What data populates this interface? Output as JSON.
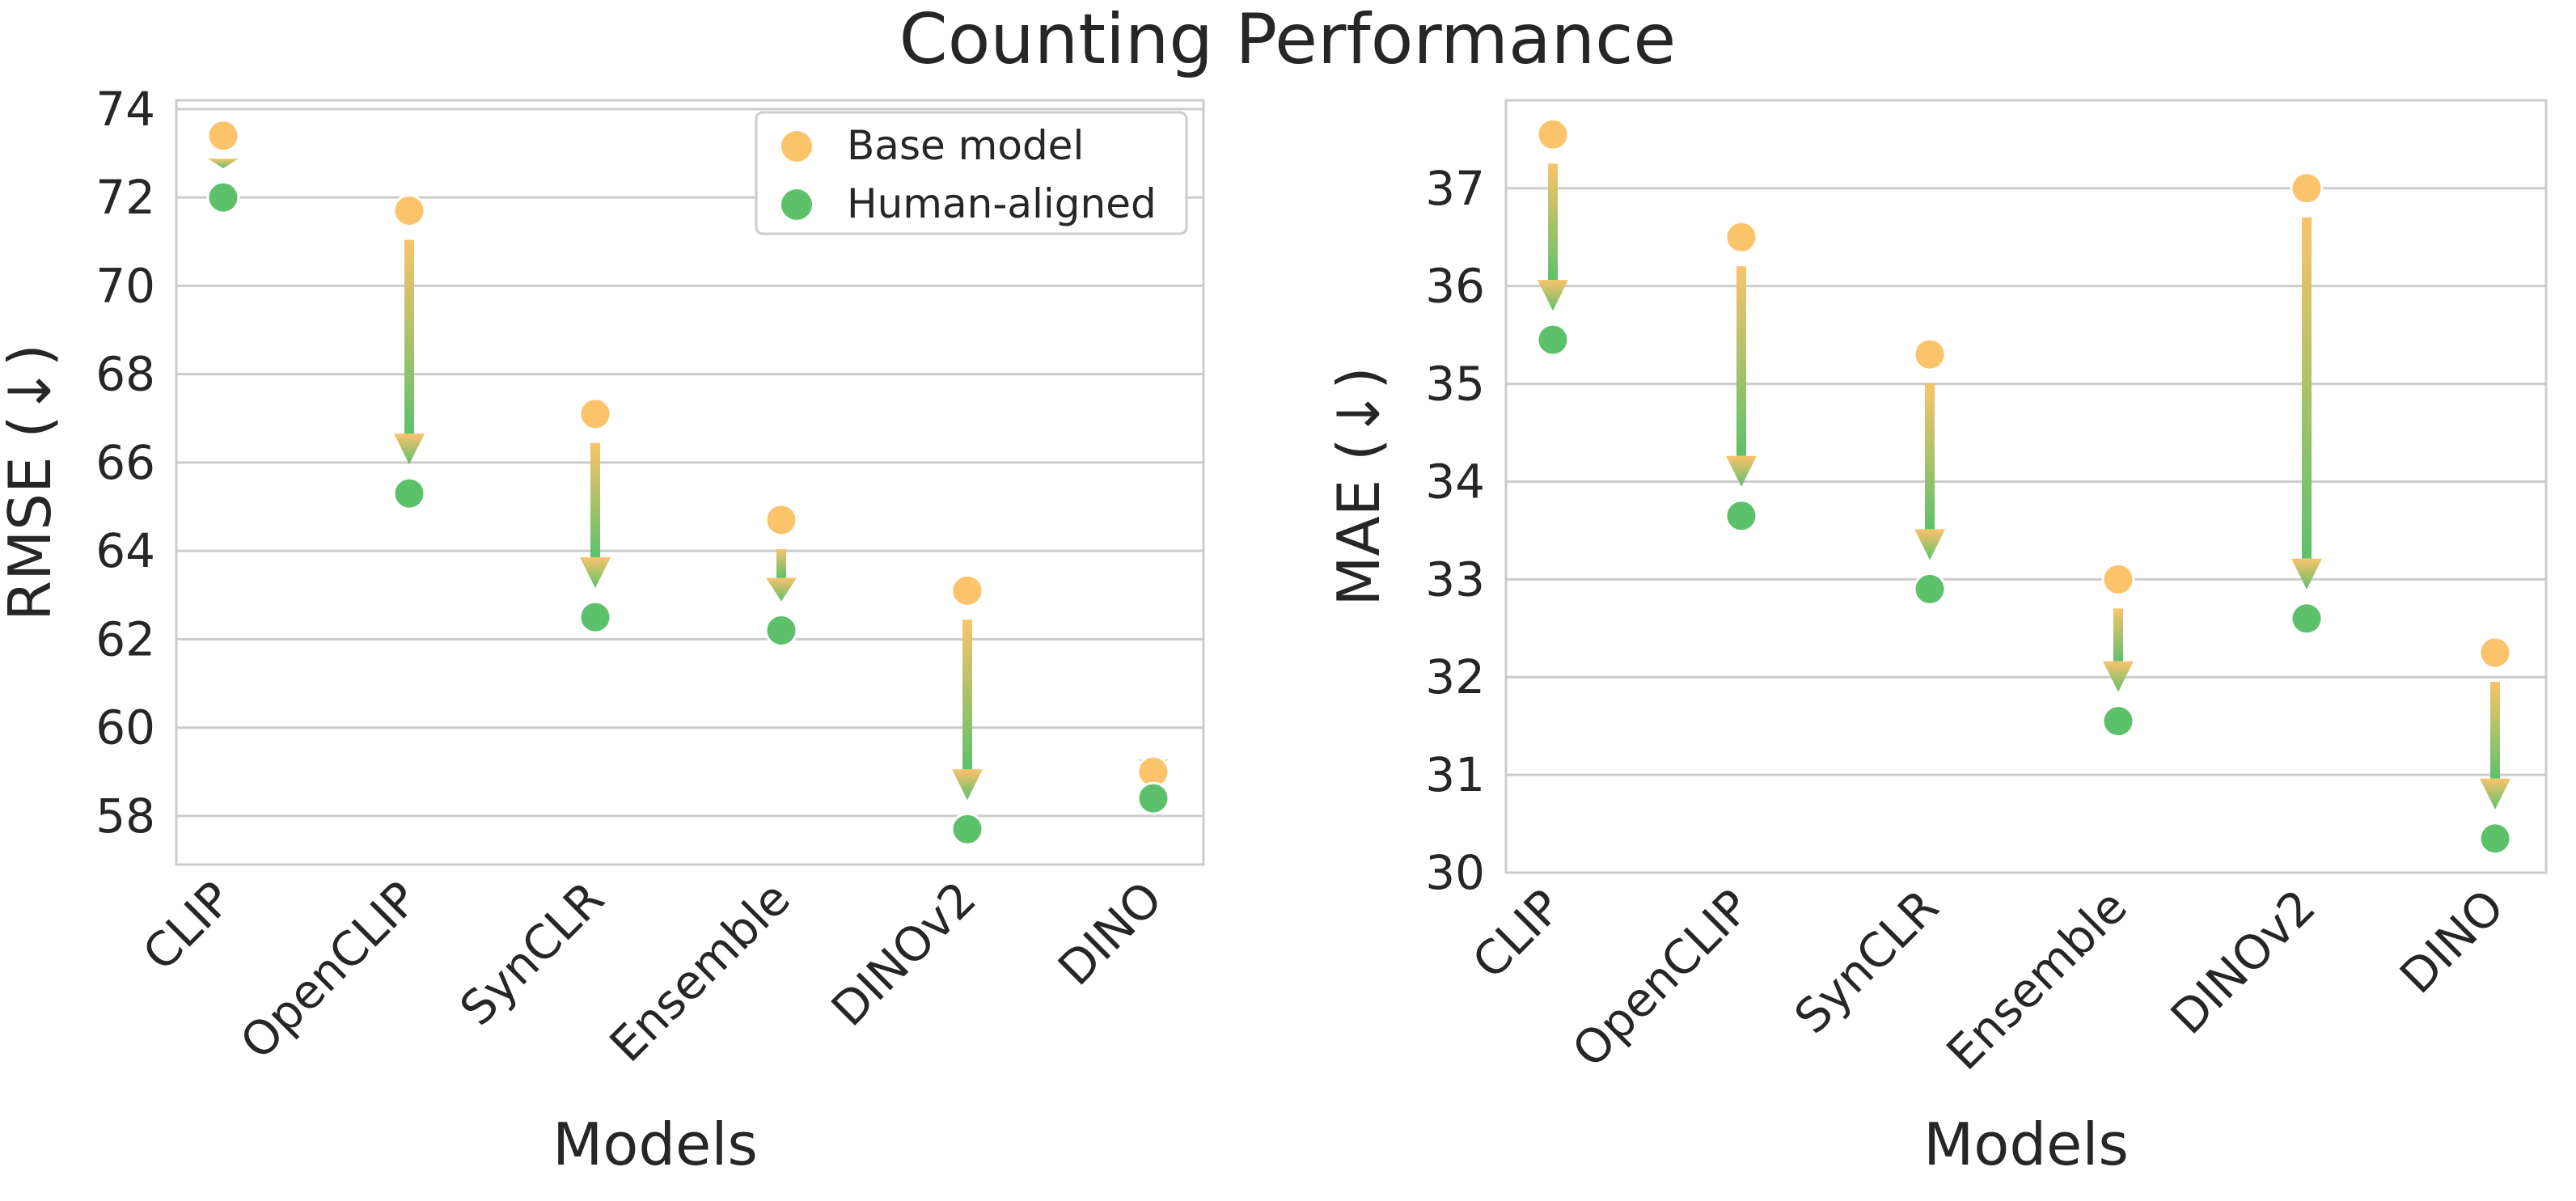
{
  "title": "Counting Performance",
  "colors": {
    "base": "#FBC36A",
    "aligned": "#5DC16B",
    "grid": "#CCCCCC",
    "frame": "#CCCCCC",
    "text": "#262626"
  },
  "chart_data": [
    {
      "type": "scatter",
      "xlabel": "Models",
      "ylabel": "RMSE (↓)",
      "categories": [
        "CLIP",
        "OpenCLIP",
        "SynCLR",
        "Ensemble",
        "DINOv2",
        "DINO"
      ],
      "ylim": [
        56.9,
        74.2
      ],
      "yticks": [
        "58",
        "60",
        "62",
        "64",
        "66",
        "68",
        "70",
        "72",
        "74"
      ],
      "grid": true,
      "legend_position": "top-right",
      "series": [
        {
          "name": "Base model",
          "values": [
            73.4,
            71.7,
            67.1,
            64.7,
            63.1,
            59.0
          ]
        },
        {
          "name": "Human-aligned",
          "values": [
            72.0,
            65.3,
            62.5,
            62.2,
            57.7,
            58.4
          ]
        }
      ]
    },
    {
      "type": "scatter",
      "xlabel": "Models",
      "ylabel": "MAE (↓)",
      "categories": [
        "CLIP",
        "OpenCLIP",
        "SynCLR",
        "Ensemble",
        "DINOv2",
        "DINO"
      ],
      "ylim": [
        30.0,
        37.9
      ],
      "yticks": [
        "30",
        "31",
        "32",
        "33",
        "34",
        "35",
        "36",
        "37"
      ],
      "grid": true,
      "legend_position": "none",
      "series": [
        {
          "values": [
            37.55,
            36.5,
            35.3,
            33.0,
            37.0,
            32.25
          ]
        },
        {
          "values": [
            35.45,
            33.65,
            32.9,
            31.55,
            32.6,
            30.35
          ]
        }
      ]
    }
  ]
}
